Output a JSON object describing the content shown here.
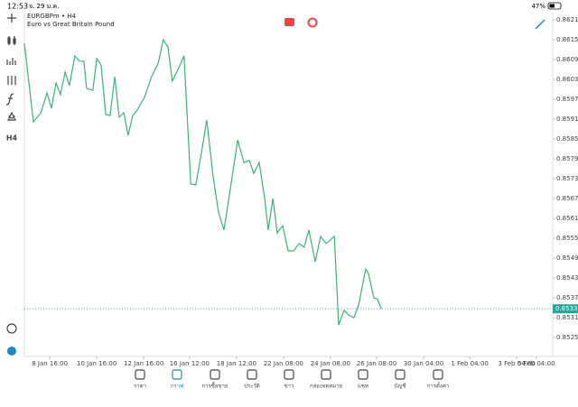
{
  "status_bar": {
    "time": "12:53",
    "date": "จ. 29 ม.ค.",
    "battery": "47%"
  },
  "toolbar": {
    "timeframe": "H4"
  },
  "chart_data": {
    "type": "line",
    "title": "EURGBPm • H4",
    "subtitle": "Euro vs Great Britain Pound",
    "x": [
      0,
      2.3,
      4.2,
      5.8,
      6.9,
      8.1,
      9.2,
      10.4,
      11.5,
      12.9,
      14.1,
      15.2,
      15.9,
      17.5,
      18.5,
      19.6,
      20.8,
      21.9,
      23.1,
      24.2,
      25.4,
      26.5,
      27.7,
      28.8,
      30.7,
      32.5,
      34.2,
      35.5,
      36.7,
      37.8,
      39.5,
      40.8,
      42.5,
      43.8,
      45.2,
      46.6,
      48.2,
      49.6,
      51,
      52.6,
      54.5,
      56.1,
      57.5,
      58.6,
      60,
      61.4,
      62.3,
      63.5,
      64.6,
      66,
      67.4,
      68.8,
      70.2,
      71.5,
      72.7,
      74.3,
      75.7,
      77.1,
      79.2,
      80.3,
      81.7,
      83.1,
      84.2,
      85.4,
      87.2,
      87.9,
      89.3,
      90.2,
      91.2
    ],
    "series": [
      {
        "color": "#3cb371",
        "values": [
          0.86139,
          0.85902,
          0.85929,
          0.85989,
          0.85943,
          0.86019,
          0.85984,
          0.86052,
          0.86011,
          0.86101,
          0.86085,
          0.86085,
          0.86003,
          0.85997,
          0.86093,
          0.86074,
          0.85924,
          0.85921,
          0.86038,
          0.85916,
          0.85929,
          0.85861,
          0.85921,
          0.85937,
          0.85976,
          0.86038,
          0.86079,
          0.8615,
          0.86128,
          0.86025,
          0.86066,
          0.86101,
          0.85714,
          0.85711,
          0.85806,
          0.85907,
          0.85738,
          0.85629,
          0.85575,
          0.85697,
          0.85847,
          0.85779,
          0.85785,
          0.85746,
          0.85779,
          0.8567,
          0.85575,
          0.8567,
          0.85566,
          0.85588,
          0.85512,
          0.85512,
          0.85534,
          0.85523,
          0.85575,
          0.85479,
          0.85556,
          0.85534,
          0.85556,
          0.85288,
          0.85332,
          0.85316,
          0.8531,
          0.85348,
          0.85457,
          0.85444,
          0.8537,
          0.85367,
          0.85337
        ]
      }
    ],
    "current_price": 0.85337,
    "xlim": [
      0,
      135
    ],
    "xticks": [
      {
        "value": 6.5,
        "label": "8 Jan 16:00"
      },
      {
        "value": 18.5,
        "label": "10 Jan 16:00"
      },
      {
        "value": 30.5,
        "label": "12 Jan 16:00"
      },
      {
        "value": 42.2,
        "label": "16 Jan 12:00"
      },
      {
        "value": 54.2,
        "label": "18 Jan 12:00"
      },
      {
        "value": 66.2,
        "label": "22 Jan 08:00"
      },
      {
        "value": 78.2,
        "label": "24 Jan 08:00"
      },
      {
        "value": 90,
        "label": "26 Jan 08:00"
      },
      {
        "value": 102,
        "label": "30 Jan 04:00"
      },
      {
        "value": 113.8,
        "label": "1 Feb 04:00"
      },
      {
        "value": 125.8,
        "label": "3 Feb 04:00"
      },
      {
        "value": 130.8,
        "label": "5 Feb 04:00"
      }
    ],
    "ylim": [
      0.85193,
      0.86229
    ],
    "yticks": [
      {
        "value": 0.8621,
        "label": "0.86210"
      },
      {
        "value": 0.8615,
        "label": "0.86150"
      },
      {
        "value": 0.8609,
        "label": "0.86090"
      },
      {
        "value": 0.8603,
        "label": "0.86030"
      },
      {
        "value": 0.8597,
        "label": "0.85970"
      },
      {
        "value": 0.8591,
        "label": "0.85910"
      },
      {
        "value": 0.8585,
        "label": "0.85850"
      },
      {
        "value": 0.8579,
        "label": "0.85790"
      },
      {
        "value": 0.8573,
        "label": "0.85730"
      },
      {
        "value": 0.8567,
        "label": "0.85670"
      },
      {
        "value": 0.8561,
        "label": "0.85610"
      },
      {
        "value": 0.8555,
        "label": "0.85550"
      },
      {
        "value": 0.8549,
        "label": "0.85490"
      },
      {
        "value": 0.8543,
        "label": "0.85430"
      },
      {
        "value": 0.8537,
        "label": "0.85370"
      },
      {
        "value": 0.8531,
        "label": "0.85310"
      },
      {
        "value": 0.8525,
        "label": "0.85250"
      }
    ]
  },
  "nav": {
    "items": [
      "ราคา",
      "กราฟ",
      "การซื้อขาย",
      "ประวัติ",
      "ข่าว",
      "กล่องจดหมาย",
      "แชท",
      "บัญชี",
      "การตั้งค่า"
    ]
  }
}
